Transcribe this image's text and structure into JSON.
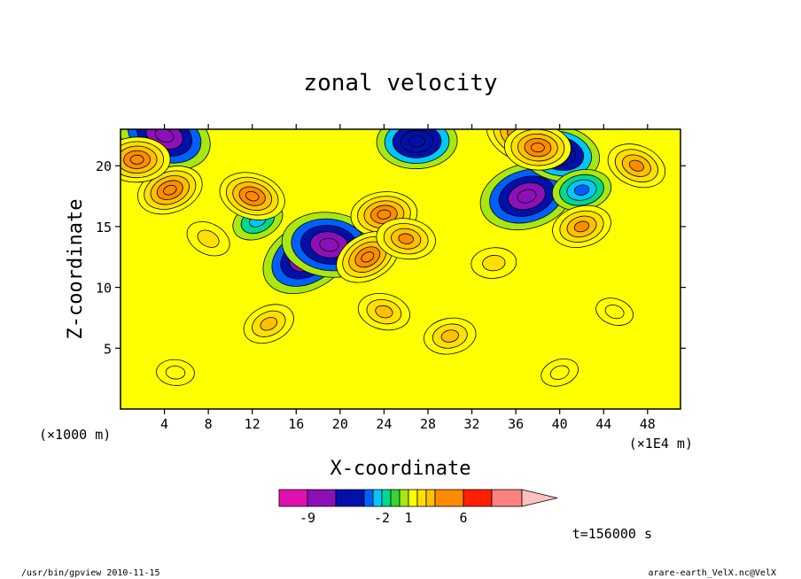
{
  "chart_data": {
    "type": "heatmap",
    "title": "zonal velocity",
    "xlabel": "X-coordinate",
    "ylabel": "Z-coordinate",
    "x_unit_left": "(×1000 m)",
    "x_unit_right": "(×1E4 m)",
    "xlim": [
      0,
      51
    ],
    "ylim": [
      0,
      23
    ],
    "x_ticks": [
      "4",
      "8",
      "12",
      "16",
      "20",
      "24",
      "28",
      "32",
      "36",
      "40",
      "44",
      "48"
    ],
    "y_ticks": [
      "5",
      "10",
      "15",
      "20"
    ],
    "time_label": "t=156000 s",
    "colorbar": {
      "levels": [
        -11,
        -9,
        -7,
        -4,
        -3,
        -2,
        -1,
        0,
        1,
        2,
        3,
        4,
        6,
        8,
        10
      ],
      "colors": [
        "#e010b0",
        "#8c10b8",
        "#0010a8",
        "#0060ff",
        "#00c8ff",
        "#00d890",
        "#30d830",
        "#a8e810",
        "#ffff00",
        "#ffe000",
        "#ffc000",
        "#ff8c00",
        "#ff2000",
        "#ff8080",
        "#ffc0c0"
      ],
      "tick_labels": [
        {
          "value": -9,
          "text": "-9"
        },
        {
          "value": -2,
          "text": "-2"
        },
        {
          "value": 1,
          "text": "1"
        },
        {
          "value": 6,
          "text": "6"
        }
      ]
    },
    "field_features": [
      {
        "x": 17,
        "z": 12.5,
        "value": -9
      },
      {
        "x": 19,
        "z": 13.5,
        "value": -9
      },
      {
        "x": 37,
        "z": 17.5,
        "value": -9
      },
      {
        "x": 4,
        "z": 22.5,
        "value": -9
      },
      {
        "x": 27,
        "z": 22,
        "value": -7
      },
      {
        "x": 12.5,
        "z": 15.5,
        "value": -3
      },
      {
        "x": 40,
        "z": 21,
        "value": -7
      },
      {
        "x": 42,
        "z": 18,
        "value": -4
      },
      {
        "x": 36.5,
        "z": 22.5,
        "value": 6
      },
      {
        "x": 38,
        "z": 21.5,
        "value": 5
      },
      {
        "x": 4.5,
        "z": 18,
        "value": 5
      },
      {
        "x": 12,
        "z": 17.5,
        "value": 5
      },
      {
        "x": 24,
        "z": 16,
        "value": 5
      },
      {
        "x": 22.5,
        "z": 12.5,
        "value": 5
      },
      {
        "x": 26,
        "z": 14,
        "value": 4
      },
      {
        "x": 42,
        "z": 15,
        "value": 4
      },
      {
        "x": 47,
        "z": 20,
        "value": 4
      },
      {
        "x": 1.5,
        "z": 20.5,
        "value": 5
      },
      {
        "x": 13.5,
        "z": 7,
        "value": 3
      },
      {
        "x": 24,
        "z": 8,
        "value": 3
      },
      {
        "x": 30,
        "z": 6,
        "value": 3
      },
      {
        "x": 8,
        "z": 14,
        "value": 2
      },
      {
        "x": 5,
        "z": 3,
        "value": 1
      },
      {
        "x": 40,
        "z": 3,
        "value": 1
      },
      {
        "x": 45,
        "z": 8,
        "value": 1
      },
      {
        "x": 34,
        "z": 12,
        "value": 2
      }
    ]
  },
  "footer": {
    "left": "/usr/bin/gpview  2010-11-15",
    "right": "arare-earth_VelX.nc@VelX"
  }
}
